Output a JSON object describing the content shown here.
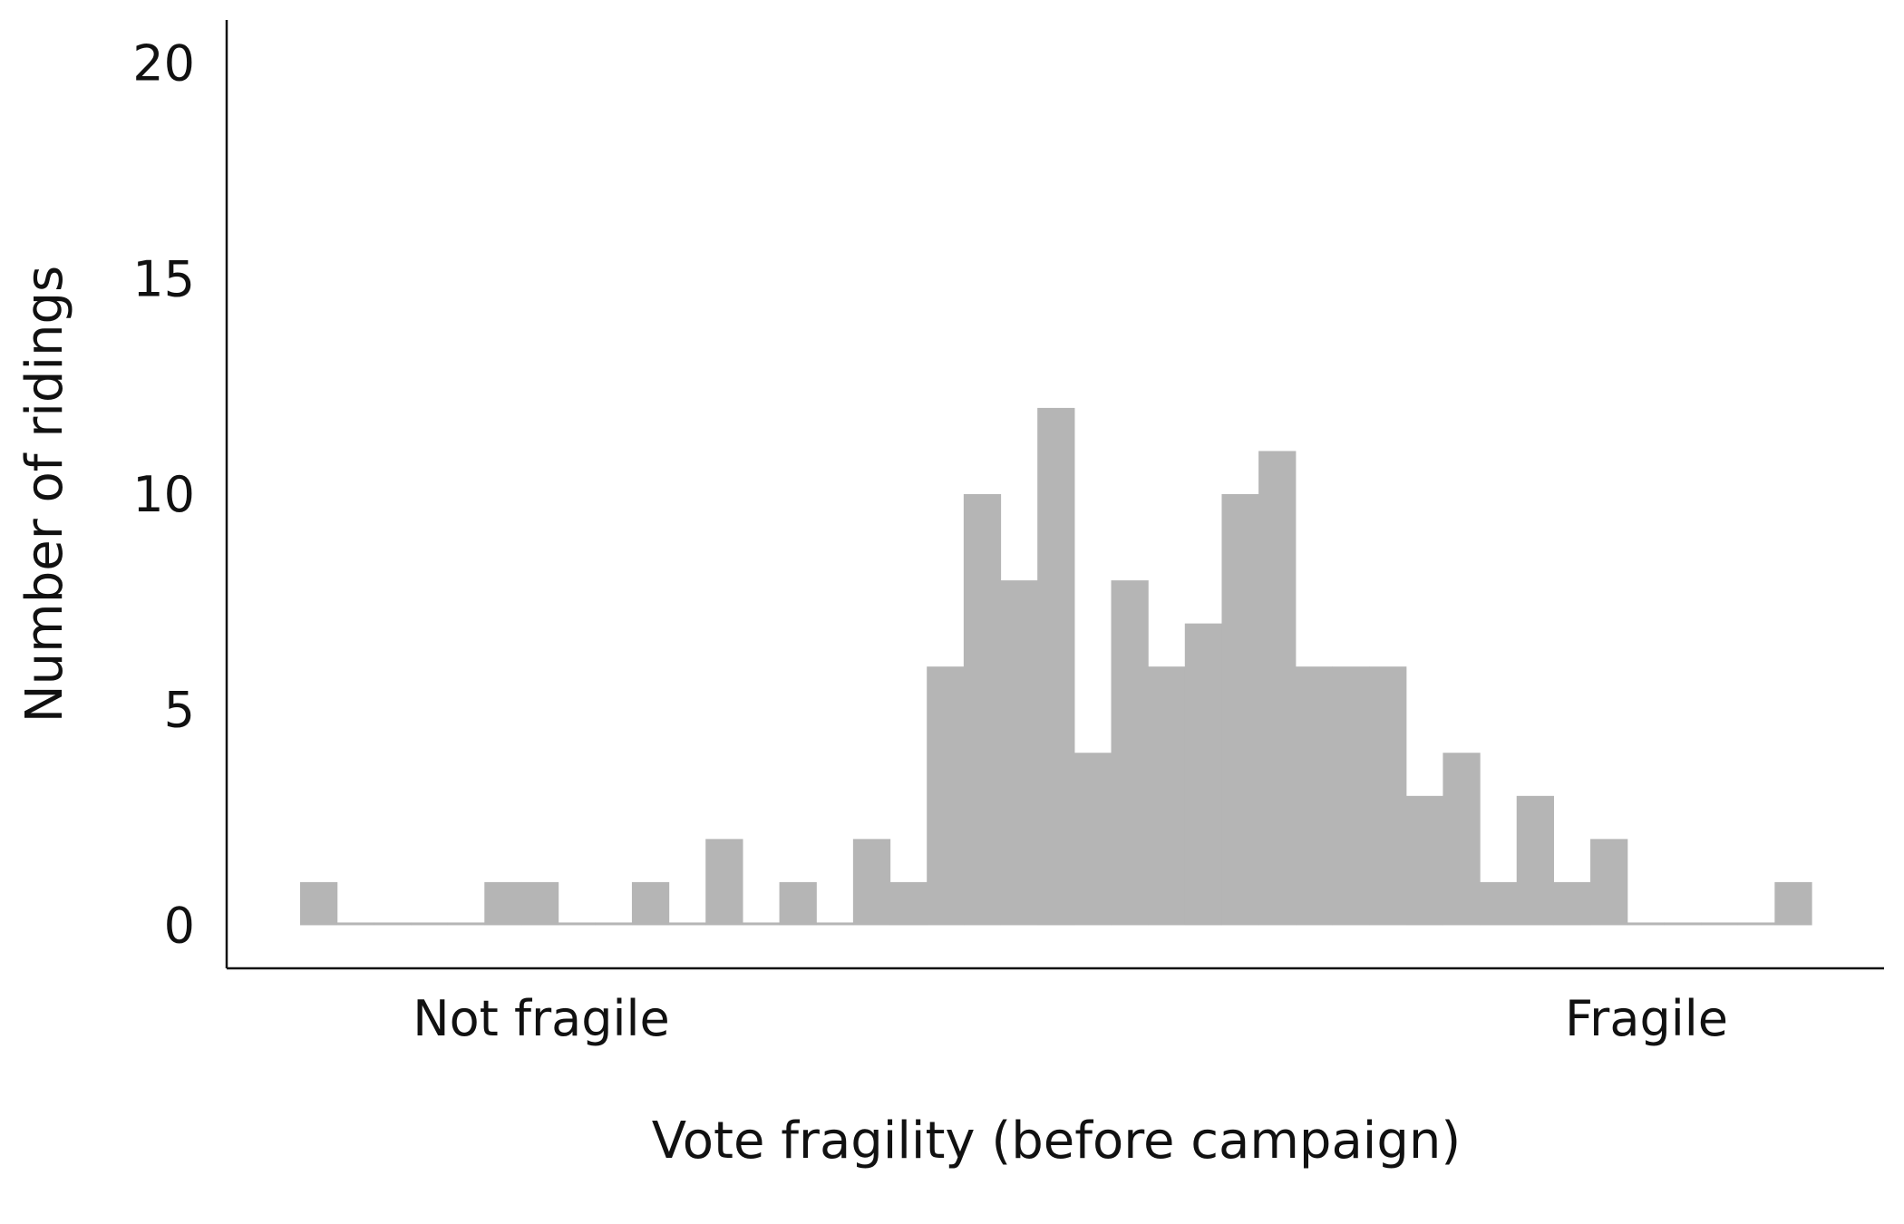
{
  "chart_data": {
    "type": "bar",
    "title": "",
    "xlabel": "Vote fragility (before campaign)",
    "ylabel": "Number of ridings",
    "x_tick_labels": [
      "Not fragile",
      "Fragile"
    ],
    "y_ticks": [
      0,
      5,
      10,
      15,
      20
    ],
    "ylim": [
      -1,
      21
    ],
    "bin_count": 41,
    "values": [
      1,
      0,
      0,
      0,
      0,
      1,
      1,
      0,
      0,
      1,
      0,
      2,
      0,
      1,
      0,
      2,
      1,
      6,
      10,
      8,
      12,
      4,
      8,
      6,
      7,
      10,
      11,
      6,
      6,
      6,
      3,
      4,
      1,
      3,
      1,
      2,
      0,
      0,
      0,
      0,
      1
    ],
    "bar_color": "#b5b5b5",
    "grid": false,
    "legend": "none"
  }
}
